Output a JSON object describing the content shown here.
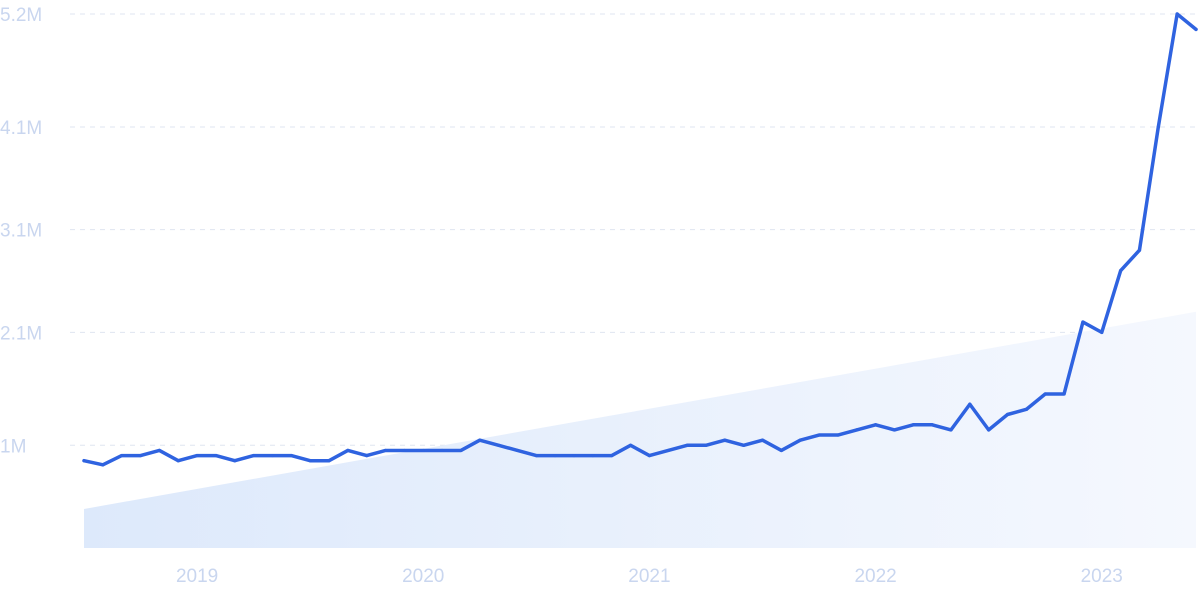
{
  "chart_data": {
    "type": "line",
    "title": "",
    "xlabel": "",
    "ylabel": "",
    "ylim": [
      0,
      5200000
    ],
    "xlim": [
      "2018-07",
      "2023-06"
    ],
    "grid": true,
    "y_ticks": [
      {
        "label": "1M",
        "value": 1000000
      },
      {
        "label": "2.1M",
        "value": 2100000
      },
      {
        "label": "3.1M",
        "value": 3100000
      },
      {
        "label": "4.1M",
        "value": 4100000
      },
      {
        "label": "5.2M",
        "value": 5200000
      }
    ],
    "x_ticks": [
      {
        "label": "2019",
        "value": "2019-01"
      },
      {
        "label": "2020",
        "value": "2020-01"
      },
      {
        "label": "2021",
        "value": "2021-01"
      },
      {
        "label": "2022",
        "value": "2022-01"
      },
      {
        "label": "2023",
        "value": "2023-01"
      }
    ],
    "trend_area": {
      "start": 380000,
      "end": 2300000
    },
    "series": [
      {
        "color": "#2f63e0",
        "points": [
          [
            "2018-07",
            850000
          ],
          [
            "2018-08",
            810000
          ],
          [
            "2018-09",
            900000
          ],
          [
            "2018-10",
            900000
          ],
          [
            "2018-11",
            950000
          ],
          [
            "2018-12",
            850000
          ],
          [
            "2019-01",
            900000
          ],
          [
            "2019-02",
            900000
          ],
          [
            "2019-03",
            850000
          ],
          [
            "2019-04",
            900000
          ],
          [
            "2019-05",
            900000
          ],
          [
            "2019-06",
            900000
          ],
          [
            "2019-07",
            850000
          ],
          [
            "2019-08",
            850000
          ],
          [
            "2019-09",
            950000
          ],
          [
            "2019-10",
            900000
          ],
          [
            "2019-11",
            950000
          ],
          [
            "2019-12",
            950000
          ],
          [
            "2020-01",
            950000
          ],
          [
            "2020-02",
            950000
          ],
          [
            "2020-03",
            950000
          ],
          [
            "2020-04",
            1050000
          ],
          [
            "2020-05",
            1000000
          ],
          [
            "2020-06",
            950000
          ],
          [
            "2020-07",
            900000
          ],
          [
            "2020-08",
            900000
          ],
          [
            "2020-09",
            900000
          ],
          [
            "2020-10",
            900000
          ],
          [
            "2020-11",
            900000
          ],
          [
            "2020-12",
            1000000
          ],
          [
            "2021-01",
            900000
          ],
          [
            "2021-02",
            950000
          ],
          [
            "2021-03",
            1000000
          ],
          [
            "2021-04",
            1000000
          ],
          [
            "2021-05",
            1050000
          ],
          [
            "2021-06",
            1000000
          ],
          [
            "2021-07",
            1050000
          ],
          [
            "2021-08",
            950000
          ],
          [
            "2021-09",
            1050000
          ],
          [
            "2021-10",
            1100000
          ],
          [
            "2021-11",
            1100000
          ],
          [
            "2021-12",
            1150000
          ],
          [
            "2022-01",
            1200000
          ],
          [
            "2022-02",
            1150000
          ],
          [
            "2022-03",
            1200000
          ],
          [
            "2022-04",
            1200000
          ],
          [
            "2022-05",
            1150000
          ],
          [
            "2022-06",
            1400000
          ],
          [
            "2022-07",
            1150000
          ],
          [
            "2022-08",
            1300000
          ],
          [
            "2022-09",
            1350000
          ],
          [
            "2022-10",
            1500000
          ],
          [
            "2022-11",
            1500000
          ],
          [
            "2022-12",
            2200000
          ],
          [
            "2023-01",
            2100000
          ],
          [
            "2023-02",
            2700000
          ],
          [
            "2023-03",
            2900000
          ],
          [
            "2023-04",
            4100000
          ],
          [
            "2023-05",
            5200000
          ],
          [
            "2023-06",
            5050000
          ]
        ]
      }
    ]
  }
}
